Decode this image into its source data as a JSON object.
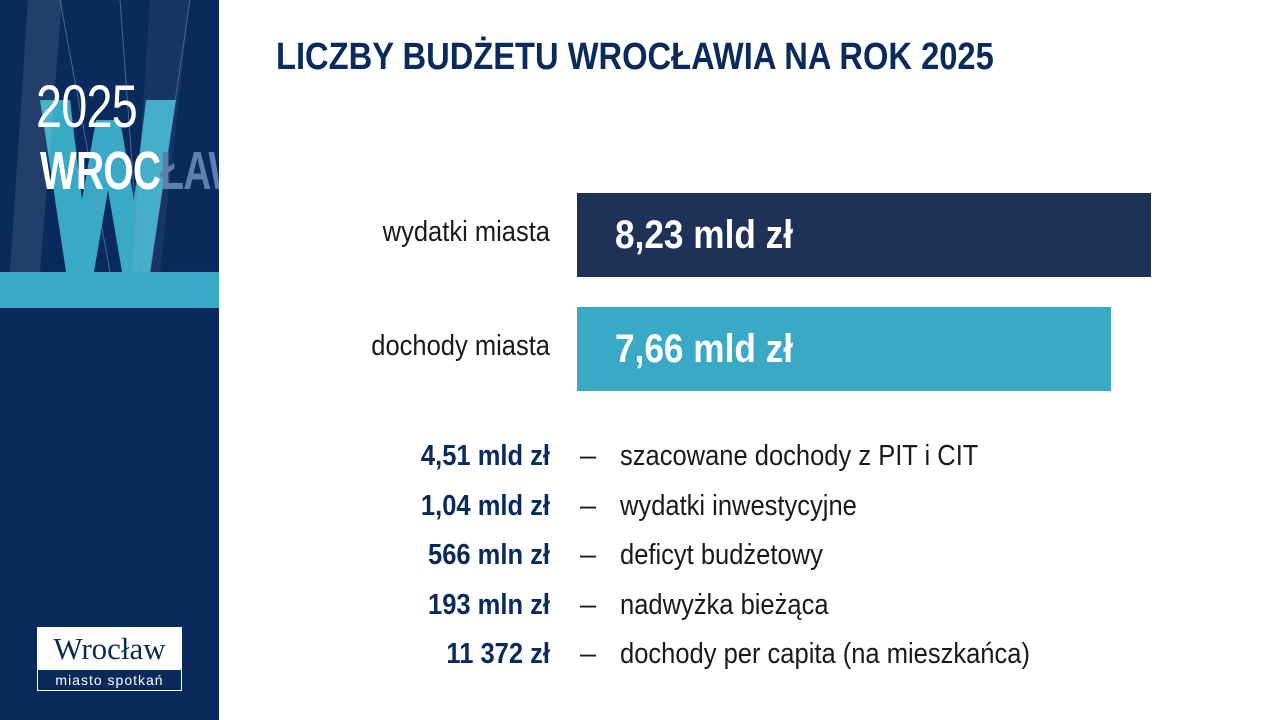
{
  "sidebar": {
    "year": "2025",
    "city_part1": "WROC",
    "city_part2": "ŁAW",
    "logo_name": "Wrocław",
    "logo_tagline": "miasto spotkań",
    "colors": {
      "panel": "#0a2a5c",
      "accent": "#3aa9c6"
    }
  },
  "title": "LICZBY BUDŻETU WROCŁAWIA NA ROK 2025",
  "chart_data": {
    "type": "bar",
    "orientation": "horizontal",
    "categories": [
      "wydatki miasta",
      "dochody miasta"
    ],
    "values": [
      8.23,
      7.66
    ],
    "value_labels": [
      "8,23 mld zł",
      "7,66 mld zł"
    ],
    "unit": "mld zł",
    "colors": [
      "#1f3157",
      "#3aa9c6"
    ],
    "title": "",
    "xlabel": "",
    "ylabel": "",
    "xlim": [
      0,
      8.23
    ],
    "grid": false,
    "legend": "none"
  },
  "facts": [
    {
      "value": "4,51 mld zł",
      "dash": "–",
      "text": "szacowane dochody z PIT i CIT"
    },
    {
      "value": "1,04 mld zł",
      "dash": "–",
      "text": "wydatki inwestycyjne"
    },
    {
      "value": "566 mln zł",
      "dash": "–",
      "text": "deficyt budżetowy"
    },
    {
      "value": "193 mln zł",
      "dash": "–",
      "text": "nadwyżka bieżąca"
    },
    {
      "value": "11 372 zł",
      "dash": "–",
      "text": "dochody per capita (na mieszkańca)"
    }
  ]
}
